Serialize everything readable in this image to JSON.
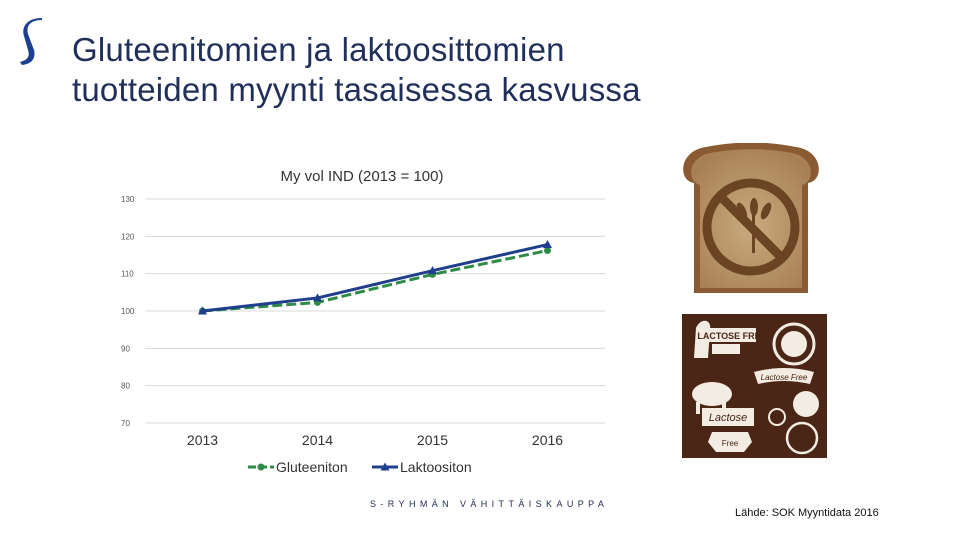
{
  "slide": {
    "title_line1": "Gluteenitomien ja laktoosittomien",
    "title_line2": "tuotteiden myynti tasaisessa kasvussa",
    "footer_brand": "S-RYHMÄN VÄHITTÄISKAUPPA",
    "source": "Lähde: SOK Myyntidata 2016"
  },
  "colors": {
    "title": "#20305a",
    "brand": "#1d3f8f",
    "gluteeniton": "#2e8b45",
    "laktoositon": "#1f3f8c",
    "grid": "#d9d9d9"
  },
  "images": {
    "bread": {
      "name": "gluten-free-bread-image"
    },
    "badges": {
      "name": "lactose-free-labels-image",
      "labels": [
        "LACTOSE FREE",
        "Lactose Free",
        "Lactose",
        "Free"
      ]
    }
  },
  "chart_data": {
    "type": "line",
    "title": "My vol IND (2013 = 100)",
    "categories": [
      "2013",
      "2014",
      "2015",
      "2016"
    ],
    "ylim": [
      70,
      130
    ],
    "yticks": [
      70,
      80,
      90,
      100,
      110,
      120,
      130
    ],
    "grid": true,
    "legend_position": "bottom",
    "series": [
      {
        "name": "Gluteeniton",
        "values": [
          100,
          102.3,
          109.8,
          116.2
        ],
        "color": "#2e8b45",
        "dash": true,
        "marker": "circle"
      },
      {
        "name": "Laktoositon",
        "values": [
          100,
          103.5,
          110.8,
          117.8
        ],
        "color": "#1f3f8c",
        "dash": false,
        "marker": "triangle"
      }
    ]
  }
}
